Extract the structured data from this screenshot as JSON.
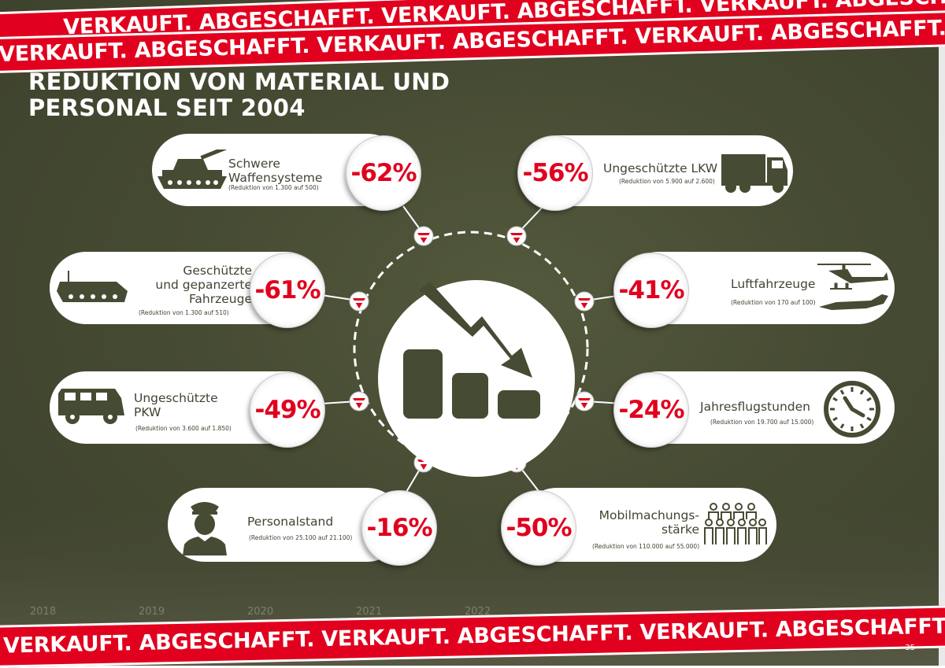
{
  "banner": {
    "top_text": "VERKAUFT. ABGESCHAFFT. VERKAUFT. ABGESCHAFFT. VERKAUFT. ABGESCHAFFT. VERKAUFT. ABGESCHAFFT. VERKAUFT.",
    "bottom_text": "VERKAUFT. ABGESCHAFFT. VERKAUFT. ABGESCHAFFT. VERKAUFT. ABGESCHAFFT. VERKAUFT. ABGESCHAFFT. VERKAUF"
  },
  "title": {
    "line1": "REDUKTION VON MATERIAL UND",
    "line2": "PERSONAL SEIT 2004"
  },
  "items": {
    "waffen": {
      "label1": "Schwere",
      "label2": "Waffensysteme",
      "sub": "(Reduktion von 1.300 auf 500)",
      "pct": "-62%",
      "icon": "tank-icon"
    },
    "lkw": {
      "label1": "Ungeschützte LKW",
      "sub": "(Reduktion von 5.900 auf 2.600)",
      "pct": "-56%",
      "icon": "truck-icon"
    },
    "gepanzert": {
      "label1": "Geschützte",
      "label2": "und gepanzerte",
      "label3": "Fahrzeuge",
      "sub": "(Reduktion von 1.300 auf 510)",
      "pct": "-61%",
      "icon": "armored-vehicle-icon"
    },
    "luft": {
      "label1": "Luftfahrzeuge",
      "sub": "(Reduktion von 170 auf 100)",
      "pct": "-41%",
      "icon": "aircraft-icon"
    },
    "pkw": {
      "label1": "Ungeschützte",
      "label2": "PKW",
      "sub": "(Reduktion von 3.600 auf 1.850)",
      "pct": "-49%",
      "icon": "jeep-icon"
    },
    "flug": {
      "label1": "Jahresflugstunden",
      "sub": "(Reduktion von 19.700 auf 15.000)",
      "pct": "-24%",
      "icon": "clock-icon"
    },
    "personal": {
      "label1": "Personalstand",
      "sub": "(Reduktion von 25.100 auf 21.100)",
      "pct": "-16%",
      "icon": "soldier-icon"
    },
    "mobil": {
      "label1": "Mobilmachungs-",
      "label2": "stärke",
      "sub": "(Reduktion von 110.000 auf 55.000)",
      "pct": "-50%",
      "icon": "crowd-icon"
    }
  },
  "background_years": [
    "2018",
    "2019",
    "2020",
    "2021",
    "2022"
  ],
  "page_number": "35",
  "colors": {
    "accent": "#e1001e",
    "olive": "#464b33",
    "icon": "#3f4532"
  }
}
